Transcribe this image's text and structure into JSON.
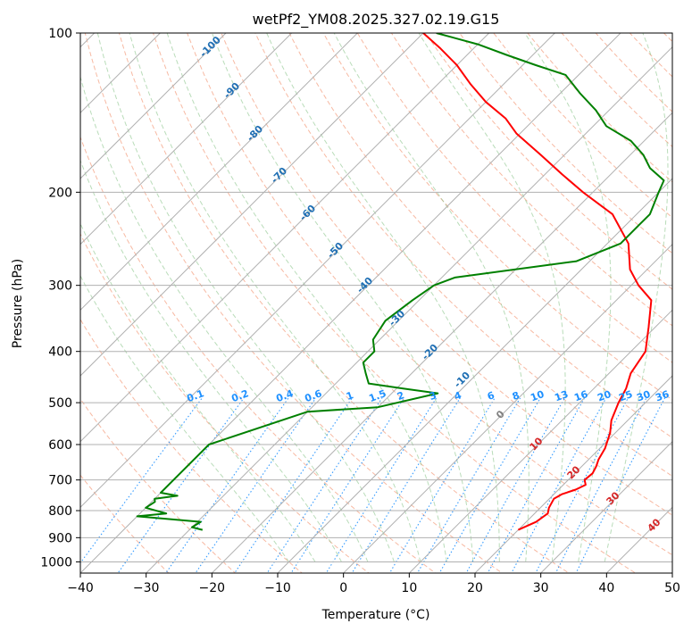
{
  "chart_data": {
    "type": "line",
    "title": "wetPf2_YM08.2025.327.02.19.G15",
    "xlabel": "Temperature (°C)",
    "ylabel": "Pressure (hPa)",
    "xlim": [
      -40,
      50
    ],
    "ylim": [
      1050,
      100
    ],
    "y_scale": "log",
    "skew": true,
    "grid": true,
    "x_ticks": [
      -40,
      -30,
      -20,
      -10,
      0,
      10,
      20,
      30,
      40,
      50
    ],
    "y_ticks": [
      100,
      200,
      300,
      400,
      500,
      600,
      700,
      800,
      900,
      1000
    ],
    "series": [
      {
        "color": "#ff0000",
        "x_temperature": [
          20.0,
          21.5,
          22.0,
          21.3,
          20.7,
          21.2,
          22.6,
          23.4,
          22.5,
          22.7,
          22.2,
          21.5,
          20.8,
          19.2,
          17.5,
          15.9,
          14.9,
          13.3,
          12.2,
          9.0,
          5.3,
          1.1,
          -2.6,
          -6.8,
          -13.7,
          -21.5,
          -27.4,
          -33.6,
          -40.5,
          -44.5,
          -50.0,
          -55.0,
          -60.0,
          -65.0,
          -70.0
        ],
        "y_pressure": [
          870,
          840,
          810,
          790,
          760,
          745,
          730,
          715,
          700,
          680,
          660,
          640,
          610,
          570,
          540,
          500,
          470,
          440,
          400,
          360,
          320,
          300,
          280,
          250,
          220,
          200,
          185,
          170,
          155,
          145,
          135,
          125,
          115,
          107,
          100
        ]
      },
      {
        "color": "#008000",
        "x_dewpoint": [
          -28,
          -30,
          -29.5,
          -40,
          -36,
          -40,
          -39.5,
          -40,
          -37,
          -40,
          -40,
          -40,
          -30,
          -20,
          -13,
          -19,
          -25,
          -27,
          -29,
          -29,
          -31,
          -32,
          -31,
          -30,
          -28,
          -12,
          -8,
          -8,
          -8,
          -10,
          -11,
          -15,
          -18,
          -22,
          -28,
          -32,
          -37,
          -42,
          -48,
          -54,
          -60,
          -68
        ],
        "y_pressure": [
          870,
          860,
          840,
          820,
          810,
          790,
          770,
          760,
          750,
          740,
          700,
          600,
          520,
          510,
          480,
          470,
          460,
          440,
          420,
          400,
          380,
          350,
          320,
          300,
          290,
          270,
          250,
          230,
          220,
          200,
          190,
          180,
          170,
          160,
          150,
          140,
          130,
          120,
          115,
          110,
          105,
          100
        ]
      }
    ],
    "dry_adiabat_labels": [
      0,
      10,
      20,
      30,
      40
    ],
    "moist_adiabat_labels": [
      -100,
      -90,
      -80,
      -70,
      -60,
      -50,
      -40,
      -30,
      -20,
      -10
    ],
    "mixing_ratio_labels": [
      "0.1",
      "0.2",
      "0.4",
      "0.6",
      "1",
      "1.5",
      "2",
      "3",
      "4",
      "6",
      "8",
      "10",
      "13",
      "16",
      "20",
      "25",
      "30",
      "36"
    ]
  }
}
